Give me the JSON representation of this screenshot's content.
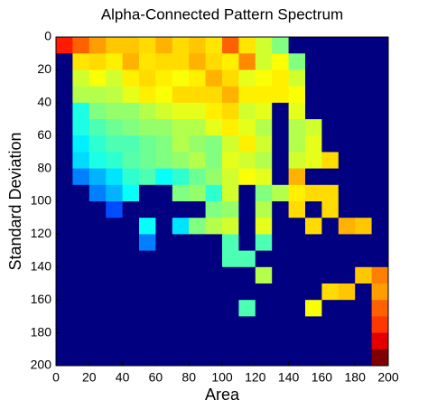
{
  "chart_data": {
    "type": "heatmap",
    "title": "Alpha-Connected Pattern Spectrum",
    "xlabel": "Area",
    "ylabel": "Standard Deviation",
    "xlim": [
      0,
      200
    ],
    "ylim": [
      0,
      200
    ],
    "y_reversed": true,
    "xticks": [
      0,
      20,
      40,
      60,
      80,
      100,
      120,
      140,
      160,
      180,
      200
    ],
    "yticks": [
      0,
      20,
      40,
      60,
      80,
      100,
      120,
      140,
      160,
      180,
      200
    ],
    "colormap": "jet",
    "clim": [
      0,
      1
    ],
    "z": [
      [
        0.85,
        0.78,
        0.72,
        0.68,
        0.68,
        0.66,
        0.7,
        0.66,
        0.68,
        0.65,
        0.78,
        0.65,
        0.58,
        0.5,
        0,
        0,
        0,
        0,
        0,
        0
      ],
      [
        0,
        0.65,
        0.66,
        0.64,
        0.7,
        0.65,
        0.66,
        0.66,
        0.7,
        0.66,
        0.64,
        0.74,
        0.58,
        0.62,
        0.5,
        0,
        0,
        0,
        0,
        0
      ],
      [
        0,
        0.58,
        0.62,
        0.58,
        0.64,
        0.66,
        0.64,
        0.62,
        0.64,
        0.7,
        0.66,
        0.6,
        0.62,
        0.64,
        0.58,
        0,
        0,
        0,
        0,
        0
      ],
      [
        0,
        0.55,
        0.55,
        0.56,
        0.6,
        0.64,
        0.62,
        0.66,
        0.66,
        0.66,
        0.7,
        0.64,
        0.64,
        0.64,
        0.62,
        0,
        0,
        0,
        0,
        0
      ],
      [
        0,
        0.4,
        0.5,
        0.52,
        0.52,
        0.55,
        0.58,
        0.6,
        0.6,
        0.64,
        0.66,
        0.58,
        0.6,
        0,
        0.6,
        0,
        0,
        0,
        0,
        0
      ],
      [
        0,
        0.4,
        0.45,
        0.48,
        0.5,
        0.52,
        0.52,
        0.55,
        0.55,
        0.6,
        0.64,
        0.6,
        0.55,
        0,
        0.55,
        0.58,
        0,
        0,
        0,
        0
      ],
      [
        0,
        0.36,
        0.42,
        0.45,
        0.45,
        0.48,
        0.5,
        0.55,
        0.52,
        0.5,
        0.58,
        0.64,
        0.58,
        0,
        0.55,
        0.6,
        0,
        0,
        0,
        0
      ],
      [
        0,
        0.34,
        0.4,
        0.42,
        0.46,
        0.48,
        0.5,
        0.52,
        0.55,
        0.5,
        0.6,
        0.58,
        0.55,
        0,
        0.58,
        0.6,
        0.66,
        0,
        0,
        0
      ],
      [
        0,
        0.25,
        0.3,
        0.35,
        0.42,
        0.45,
        0.38,
        0.42,
        0.48,
        0.52,
        0.58,
        0.62,
        0.6,
        0,
        0.7,
        0,
        0,
        0,
        0,
        0
      ],
      [
        0,
        0,
        0.25,
        0.3,
        0.38,
        0,
        0,
        0.5,
        0.52,
        0.42,
        0.58,
        0,
        0.5,
        0.55,
        0.64,
        0.66,
        0.66,
        0,
        0,
        0
      ],
      [
        0,
        0,
        0,
        0.2,
        0,
        0,
        0,
        0,
        0,
        0.5,
        0.52,
        0,
        0.55,
        0,
        0.66,
        0,
        0.66,
        0,
        0,
        0
      ],
      [
        0,
        0,
        0,
        0,
        0,
        0.38,
        0,
        0.35,
        0.5,
        0.55,
        0.58,
        0,
        0.6,
        0,
        0,
        0.66,
        0,
        0.7,
        0.68,
        0
      ],
      [
        0,
        0,
        0,
        0,
        0,
        0.25,
        0,
        0,
        0,
        0,
        0.45,
        0,
        0.45,
        0,
        0,
        0,
        0,
        0,
        0,
        0
      ],
      [
        0,
        0,
        0,
        0,
        0,
        0,
        0,
        0,
        0,
        0,
        0.45,
        0.45,
        0,
        0,
        0,
        0,
        0,
        0,
        0,
        0
      ],
      [
        0,
        0,
        0,
        0,
        0,
        0,
        0,
        0,
        0,
        0,
        0,
        0,
        0.55,
        0,
        0,
        0,
        0,
        0,
        0.68,
        0.75
      ],
      [
        0,
        0,
        0,
        0,
        0,
        0,
        0,
        0,
        0,
        0,
        0,
        0,
        0,
        0,
        0,
        0,
        0.66,
        0.68,
        0,
        0.72
      ],
      [
        0,
        0,
        0,
        0,
        0,
        0,
        0,
        0,
        0,
        0,
        0,
        0.45,
        0,
        0,
        0,
        0.62,
        0,
        0,
        0,
        0.78
      ],
      [
        0,
        0,
        0,
        0,
        0,
        0,
        0,
        0,
        0,
        0,
        0,
        0,
        0,
        0,
        0,
        0,
        0,
        0,
        0,
        0.82
      ],
      [
        0,
        0,
        0,
        0,
        0,
        0,
        0,
        0,
        0,
        0,
        0,
        0,
        0,
        0,
        0,
        0,
        0,
        0,
        0,
        0.9
      ],
      [
        0,
        0,
        0,
        0,
        0,
        0,
        0,
        0,
        0,
        0,
        0,
        0,
        0,
        0,
        0,
        0,
        0,
        0,
        0,
        1
      ]
    ]
  }
}
